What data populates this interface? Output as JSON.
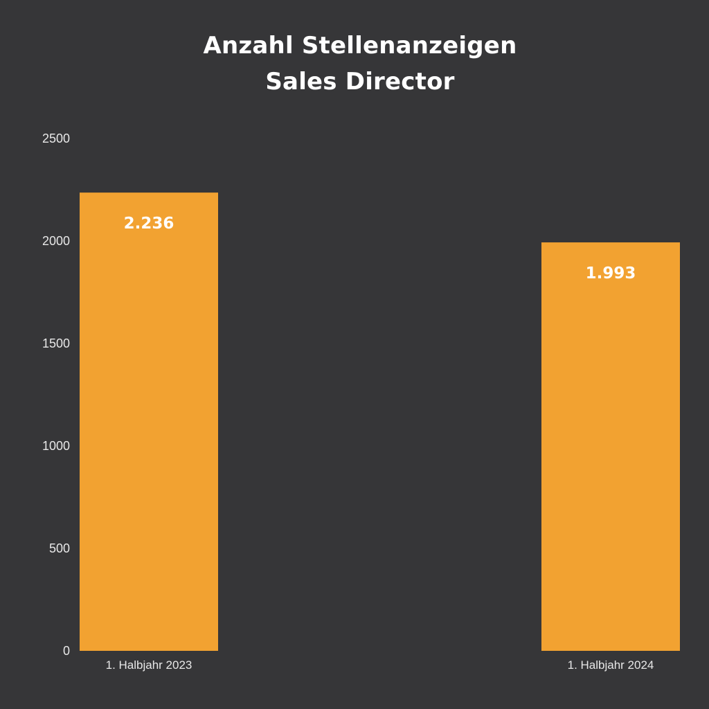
{
  "chart_data": {
    "type": "bar",
    "title": [
      "Anzahl Stellenanzeigen",
      "Sales Director"
    ],
    "categories": [
      "1. Halbjahr 2023",
      "1. Halbjahr 2024"
    ],
    "values": [
      2236,
      1993
    ],
    "value_labels": [
      "2.236",
      "1.993"
    ],
    "yticks": [
      0,
      500,
      1000,
      1500,
      2000,
      2500
    ],
    "ylim": [
      0,
      2500
    ],
    "grid": false,
    "legend": "none",
    "colors": {
      "background": "#363638",
      "bar": "#F2A231",
      "text": "#ffffff",
      "axis_text": "#e8e8e8"
    }
  }
}
